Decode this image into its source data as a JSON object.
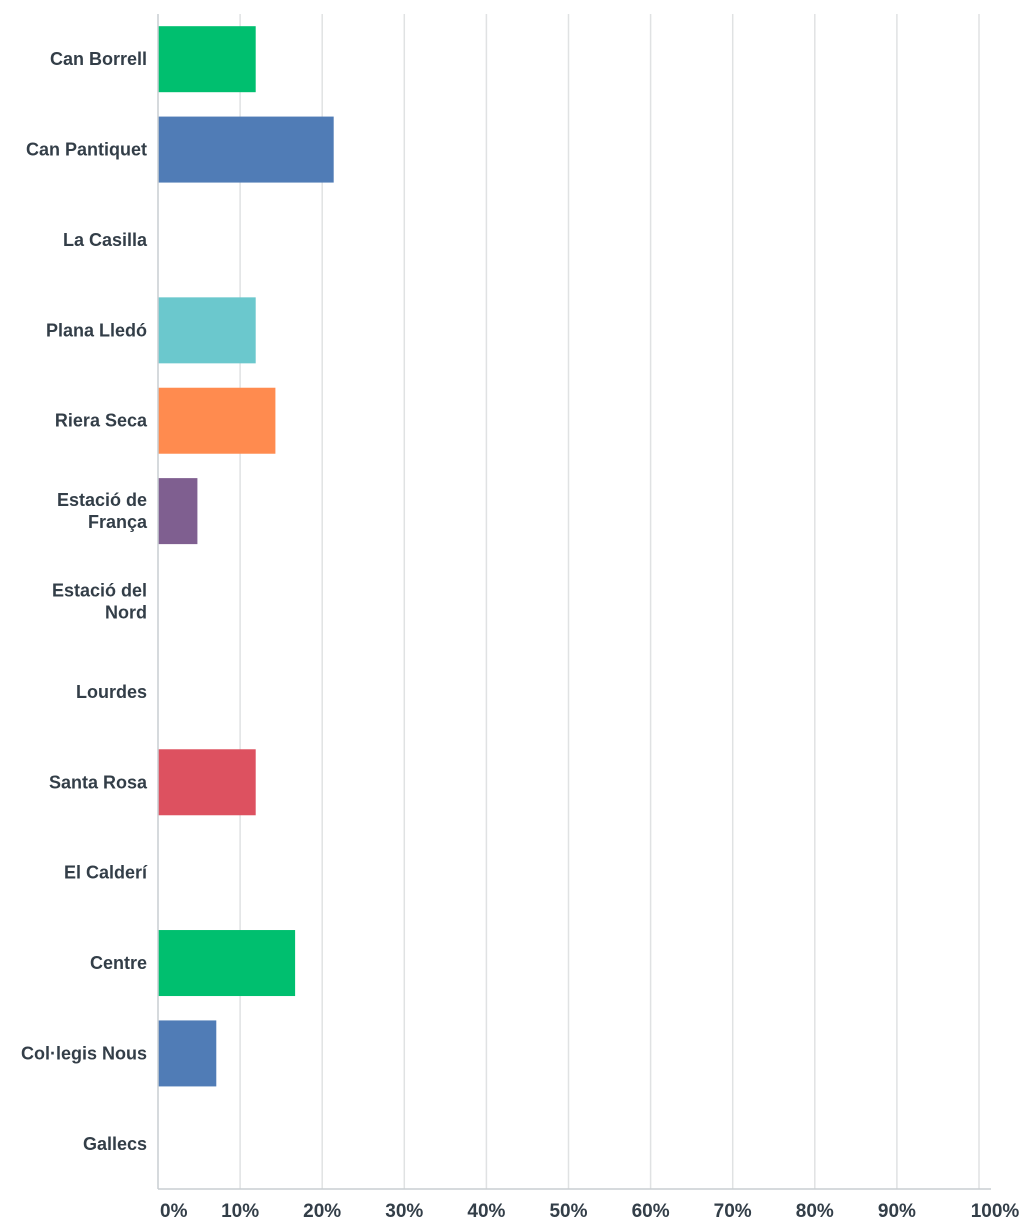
{
  "chart_data": {
    "type": "bar",
    "orientation": "horizontal",
    "categories": [
      "Can Borrell",
      "Can Pantiquet",
      "La Casilla",
      "Plana Lledó",
      "Riera Seca",
      "Estació de França",
      "Estació del Nord",
      "Lourdes",
      "Santa Rosa",
      "El Calderí",
      "Centre",
      "Col·legis Nous",
      "Gallecs"
    ],
    "values": [
      11.9,
      21.4,
      0,
      11.9,
      14.3,
      4.8,
      0,
      0,
      11.9,
      0,
      16.7,
      7.1,
      0
    ],
    "unit": "%",
    "xlim": [
      0,
      100
    ],
    "xticks": [
      "0%",
      "10%",
      "20%",
      "30%",
      "40%",
      "50%",
      "60%",
      "70%",
      "80%",
      "90%",
      "100%"
    ],
    "grid": true,
    "title": "",
    "xlabel": "",
    "ylabel": "",
    "legend": "none",
    "colors": [
      "#00bf6f",
      "#507cb6",
      "#f9be00",
      "#6bc8cd",
      "#ff8b4f",
      "#7f5f90",
      "#d25f90",
      "#c3c3c3",
      "#dd5160",
      "#a9a4a0",
      "#00bf6f",
      "#507cb6",
      "#f9be00"
    ],
    "gridline_color": "#e0e2e3",
    "axis_color": "#c9ced2",
    "text_color": "#333e48"
  }
}
